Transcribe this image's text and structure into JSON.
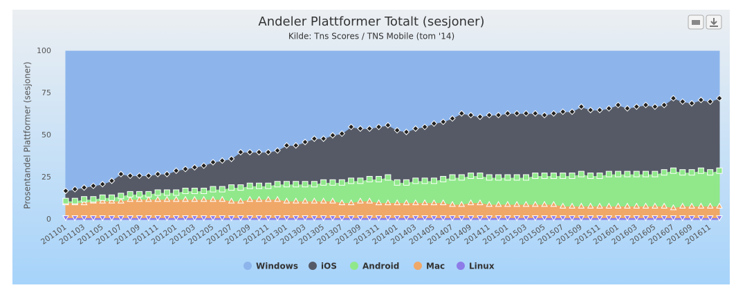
{
  "chart_data": {
    "type": "stacked-area",
    "title": "Andeler Plattformer Totalt (sesjoner)",
    "subtitle": "Kilde: Tns Scores / TNS Mobile (tom '14)",
    "y_label": "Prosentandel Plattformer (sesjoner)",
    "categories": [
      "201101",
      null,
      "201103",
      null,
      "201105",
      null,
      "201107",
      null,
      "201109",
      null,
      "201111",
      null,
      "201201",
      null,
      "201203",
      null,
      "201205",
      null,
      "201207",
      null,
      "201209",
      null,
      "201211",
      null,
      "201301",
      null,
      "201303",
      null,
      "201305",
      null,
      "201307",
      null,
      "201309",
      null,
      "201311",
      null,
      "201401",
      null,
      "201403",
      null,
      "201405",
      null,
      "201407",
      null,
      "201409",
      null,
      "201411",
      null,
      "201501",
      null,
      "201503",
      null,
      "201505",
      null,
      "201507",
      null,
      "201509",
      null,
      "201511",
      null,
      "201601",
      null,
      "201603",
      null,
      "201605",
      null,
      "201607",
      null,
      "201609",
      null,
      "201611",
      null
    ],
    "series": [
      {
        "name": "Windows",
        "color": "#8db5ec",
        "marker": "none",
        "values": [
          83,
          82,
          81,
          80,
          79,
          77,
          73,
          74,
          74,
          74,
          73,
          73,
          71,
          70,
          69,
          68,
          66,
          65,
          64,
          60,
          60,
          60,
          60,
          59,
          56,
          56,
          54,
          52,
          52,
          50,
          49,
          45,
          46,
          46,
          45,
          44,
          47,
          48,
          46,
          45,
          43,
          42,
          40,
          37,
          38,
          39,
          38,
          38,
          37,
          37,
          37,
          37,
          38,
          37,
          36,
          36,
          33,
          35,
          35,
          34,
          32,
          34,
          33,
          32,
          33,
          32,
          28,
          30,
          31,
          29,
          30,
          28
        ]
      },
      {
        "name": "iOS",
        "color": "#555a66",
        "marker": "diamond",
        "values": [
          6,
          7,
          7,
          8,
          8,
          10,
          13,
          11,
          11,
          11,
          11,
          11,
          13,
          13,
          14,
          15,
          16,
          17,
          17,
          21,
          20,
          20,
          20,
          20,
          23,
          23,
          25,
          27,
          26,
          28,
          29,
          32,
          31,
          30,
          31,
          31,
          31,
          30,
          31,
          32,
          34,
          34,
          35,
          38,
          36,
          35,
          37,
          37,
          38,
          38,
          38,
          37,
          36,
          37,
          38,
          38,
          40,
          39,
          39,
          39,
          41,
          39,
          40,
          41,
          40,
          40,
          43,
          42,
          41,
          42,
          42,
          43
        ]
      },
      {
        "name": "Android",
        "color": "#90e88a",
        "marker": "square",
        "values": [
          1,
          1,
          2,
          1,
          2,
          2,
          3,
          3,
          3,
          3,
          4,
          4,
          4,
          5,
          5,
          5,
          6,
          6,
          8,
          8,
          8,
          8,
          8,
          9,
          10,
          10,
          10,
          10,
          11,
          11,
          12,
          13,
          12,
          13,
          14,
          15,
          12,
          12,
          13,
          13,
          13,
          14,
          16,
          16,
          16,
          16,
          16,
          16,
          16,
          16,
          16,
          17,
          17,
          17,
          18,
          18,
          19,
          18,
          18,
          19,
          19,
          19,
          19,
          19,
          19,
          20,
          22,
          20,
          20,
          21,
          20,
          21
        ]
      },
      {
        "name": "Mac",
        "color": "#f0a868",
        "marker": "triangle",
        "values": [
          9,
          9,
          9,
          10,
          10,
          10,
          10,
          11,
          11,
          11,
          11,
          11,
          11,
          11,
          11,
          11,
          11,
          11,
          10,
          10,
          11,
          11,
          11,
          11,
          10,
          10,
          10,
          10,
          10,
          10,
          9,
          9,
          10,
          10,
          9,
          9,
          9,
          9,
          9,
          9,
          9,
          9,
          8,
          8,
          9,
          9,
          8,
          8,
          8,
          8,
          8,
          8,
          8,
          8,
          7,
          7,
          7,
          7,
          7,
          7,
          7,
          7,
          7,
          7,
          7,
          7,
          6,
          7,
          7,
          7,
          7,
          7
        ]
      },
      {
        "name": "Linux",
        "color": "#8d7be8",
        "marker": "triangle-down",
        "values": [
          1,
          1,
          1,
          1,
          1,
          1,
          1,
          1,
          1,
          1,
          1,
          1,
          1,
          1,
          1,
          1,
          1,
          1,
          1,
          1,
          1,
          1,
          1,
          1,
          1,
          1,
          1,
          1,
          1,
          1,
          1,
          1,
          1,
          1,
          1,
          1,
          1,
          1,
          1,
          1,
          1,
          1,
          1,
          1,
          1,
          1,
          1,
          1,
          1,
          1,
          1,
          1,
          1,
          1,
          1,
          1,
          1,
          1,
          1,
          1,
          1,
          1,
          1,
          1,
          1,
          1,
          1,
          1,
          1,
          1,
          1,
          1
        ]
      }
    ],
    "ylim": [
      0,
      100
    ],
    "yticks": [
      0,
      25,
      50,
      75,
      100
    ],
    "grid": false,
    "legend": "bottom"
  }
}
